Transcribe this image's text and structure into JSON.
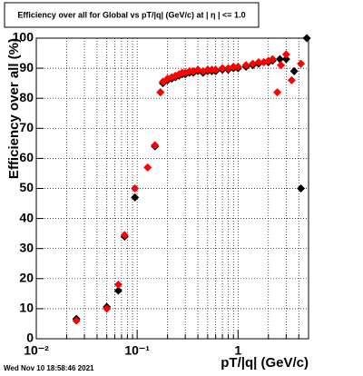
{
  "chart_data": {
    "type": "scatter",
    "title": "Efficiency over all for Global vs pT/|q| (GeV/c) at | η | <= 1.0",
    "xlabel": "pT/|q| (GeV/c)",
    "ylabel": "Efficiency over all (%)",
    "footer": "Wed Nov 10 18:58:46 2021",
    "xscale": "log",
    "xlim": [
      0.01,
      5
    ],
    "ylim": [
      0,
      100
    ],
    "xticks": [
      {
        "value": 0.01,
        "label": "10⁻²"
      },
      {
        "value": 0.1,
        "label": "10⁻¹"
      },
      1
    ],
    "xminorticks": [
      0.02,
      0.03,
      0.04,
      0.05,
      0.06,
      0.07,
      0.08,
      0.09,
      0.2,
      0.3,
      0.4,
      0.5,
      0.6,
      0.7,
      0.8,
      0.9,
      2,
      3,
      4,
      5
    ],
    "yticks": [
      0,
      10,
      20,
      30,
      40,
      50,
      60,
      70,
      80,
      90,
      100
    ],
    "grid": true,
    "series": [
      {
        "color": "#000000",
        "x": [
          0.025,
          0.05,
          0.065,
          0.075,
          0.095,
          0.15,
          0.17,
          0.18,
          0.2,
          0.22,
          0.24,
          0.26,
          0.28,
          0.3,
          0.33,
          0.36,
          0.4,
          0.45,
          0.5,
          0.55,
          0.6,
          0.7,
          0.8,
          0.9,
          1.0,
          1.2,
          1.4,
          1.6,
          1.8,
          2.0,
          2.2,
          2.6,
          3.0,
          3.6,
          4.2,
          4.8
        ],
        "values": [
          6.6,
          10.6,
          16,
          34,
          47,
          64,
          82,
          85,
          86,
          86.5,
          87,
          87.5,
          88,
          88,
          88.5,
          88.5,
          89,
          88.5,
          89,
          89,
          89,
          89.5,
          89.5,
          90,
          90,
          90.5,
          91,
          91.5,
          92,
          92,
          92.5,
          93,
          93,
          89,
          50,
          100
        ]
      },
      {
        "color": "#ff0000",
        "x": [
          0.025,
          0.05,
          0.065,
          0.075,
          0.095,
          0.127,
          0.15,
          0.17,
          0.18,
          0.2,
          0.22,
          0.24,
          0.26,
          0.28,
          0.3,
          0.33,
          0.36,
          0.4,
          0.45,
          0.5,
          0.55,
          0.6,
          0.7,
          0.8,
          0.9,
          1.0,
          1.2,
          1.4,
          1.6,
          1.8,
          2.0,
          2.2,
          2.45,
          2.66,
          3.0,
          3.4,
          4.2
        ],
        "values": [
          6,
          10,
          18,
          34.5,
          50,
          57,
          64.4,
          82,
          85.5,
          86.5,
          87,
          87.5,
          88,
          88.5,
          88.5,
          89,
          89,
          89.5,
          89,
          89.5,
          89.5,
          89.5,
          90,
          90,
          90.5,
          90.5,
          91,
          91.5,
          92,
          92,
          92.5,
          93,
          82,
          91,
          94.6,
          86,
          91.5
        ]
      }
    ]
  }
}
